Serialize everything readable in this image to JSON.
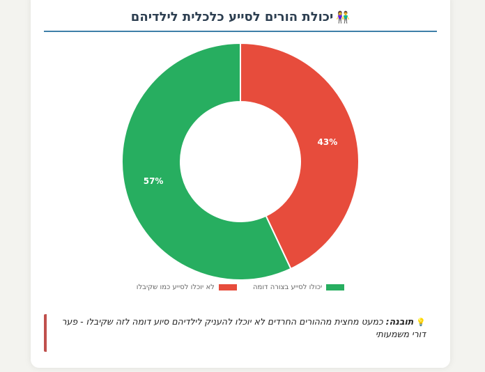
{
  "card": {
    "title": "יכולת הורים לסייע כלכלית לילדיהם",
    "title_icon": "👫"
  },
  "legend": [
    {
      "label": "יכולו לסייע בצורה דומה",
      "color": "#27ae60"
    },
    {
      "label": "לא יוכלו לסייע כמו שקיבלו",
      "color": "#e74c3c"
    }
  ],
  "insight": {
    "icon": "💡",
    "label": "תובנה:",
    "text": "כמעט מחצית מההורים החרדים לא יוכלו להעניק לילדיהם סיוע דומה לזה שקיבלו - פער דורי משמעותי"
  },
  "chart_data": {
    "type": "pie",
    "subtype": "doughnut",
    "title": "יכולת הורים לסייע כלכלית לילדיהם",
    "categories": [
      "לא יוכלו לסייע כמו שקיבלו",
      "יכולו לסייע בצורה דומה"
    ],
    "values": [
      43,
      57
    ],
    "labels": [
      "43%",
      "57%"
    ],
    "colors": [
      "#e74c3c",
      "#27ae60"
    ],
    "legend_position": "bottom"
  }
}
